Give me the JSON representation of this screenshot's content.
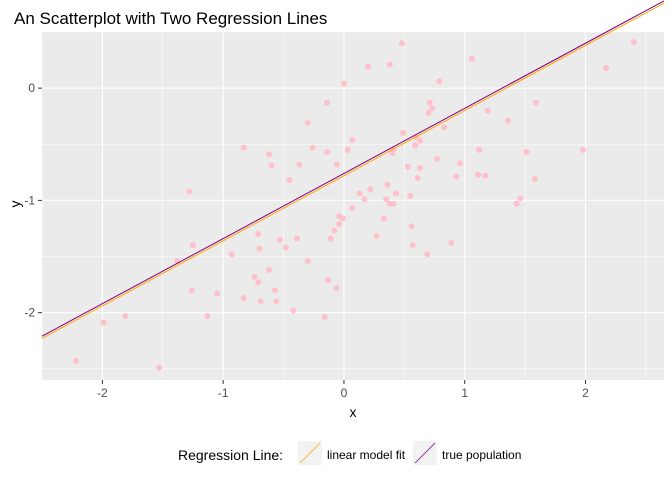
{
  "chart_data": {
    "type": "scatter",
    "title": "An Scatterplot with Two Regression Lines",
    "xlabel": "x",
    "ylabel": "y",
    "xlim": [
      -2.5,
      2.65
    ],
    "ylim": [
      -2.6,
      0.5
    ],
    "xticks": [
      -2,
      -1,
      0,
      1,
      2
    ],
    "yticks": [
      -2,
      -1,
      0
    ],
    "xtick_labels": [
      "-2",
      "-1",
      "0",
      "1",
      "2"
    ],
    "ytick_labels": [
      "-2",
      "-1",
      "0"
    ],
    "grid": true,
    "background": "#EBEBEB",
    "point_color": "#FFC0CB",
    "legend": {
      "title": "Regression Line:",
      "placement": "bottom",
      "entries": [
        {
          "label": "linear model fit",
          "color": "#FFA500"
        },
        {
          "label": "true population",
          "color": "#800080"
        }
      ]
    },
    "lines": [
      {
        "label": "linear model fit",
        "color": "#FFA500",
        "intercept": -0.78,
        "slope": 0.58
      },
      {
        "label": "true population",
        "color": "#800080",
        "intercept": -0.76,
        "slope": 0.58
      }
    ],
    "points": [
      {
        "x": -2.22,
        "y": -2.43
      },
      {
        "x": -1.99,
        "y": -2.09
      },
      {
        "x": -1.81,
        "y": -2.03
      },
      {
        "x": -1.53,
        "y": -2.49
      },
      {
        "x": -1.38,
        "y": -1.54
      },
      {
        "x": -1.28,
        "y": -0.92
      },
      {
        "x": -1.25,
        "y": -1.4
      },
      {
        "x": -1.26,
        "y": -1.8
      },
      {
        "x": -1.13,
        "y": -2.03
      },
      {
        "x": -1.05,
        "y": -1.83
      },
      {
        "x": -0.93,
        "y": -1.48
      },
      {
        "x": -0.83,
        "y": -0.53
      },
      {
        "x": -0.83,
        "y": -1.87
      },
      {
        "x": -0.74,
        "y": -1.68
      },
      {
        "x": -0.71,
        "y": -1.3
      },
      {
        "x": -0.71,
        "y": -1.73
      },
      {
        "x": -0.7,
        "y": -1.43
      },
      {
        "x": -0.69,
        "y": -1.9
      },
      {
        "x": -0.62,
        "y": -1.62
      },
      {
        "x": -0.62,
        "y": -0.59
      },
      {
        "x": -0.6,
        "y": -0.69
      },
      {
        "x": -0.57,
        "y": -1.8
      },
      {
        "x": -0.56,
        "y": -1.9
      },
      {
        "x": -0.53,
        "y": -1.35
      },
      {
        "x": -0.48,
        "y": -1.42
      },
      {
        "x": -0.45,
        "y": -0.82
      },
      {
        "x": -0.42,
        "y": -1.98
      },
      {
        "x": -0.39,
        "y": -1.34
      },
      {
        "x": -0.37,
        "y": -0.68
      },
      {
        "x": -0.3,
        "y": -0.31
      },
      {
        "x": -0.3,
        "y": -1.54
      },
      {
        "x": -0.26,
        "y": -0.53
      },
      {
        "x": -0.16,
        "y": -2.04
      },
      {
        "x": -0.14,
        "y": -0.13
      },
      {
        "x": -0.14,
        "y": -0.57
      },
      {
        "x": -0.13,
        "y": -1.71
      },
      {
        "x": -0.11,
        "y": -1.34
      },
      {
        "x": -0.08,
        "y": -1.27
      },
      {
        "x": -0.06,
        "y": -1.78
      },
      {
        "x": -0.06,
        "y": -0.68
      },
      {
        "x": -0.04,
        "y": -1.21
      },
      {
        "x": -0.04,
        "y": -1.14
      },
      {
        "x": -0.01,
        "y": -1.16
      },
      {
        "x": 0.0,
        "y": 0.04
      },
      {
        "x": 0.03,
        "y": -0.55
      },
      {
        "x": 0.07,
        "y": -0.46
      },
      {
        "x": 0.07,
        "y": -1.07
      },
      {
        "x": 0.13,
        "y": -0.94
      },
      {
        "x": 0.17,
        "y": -0.99
      },
      {
        "x": 0.2,
        "y": 0.19
      },
      {
        "x": 0.22,
        "y": -0.9
      },
      {
        "x": 0.27,
        "y": -1.32
      },
      {
        "x": 0.33,
        "y": -1.16
      },
      {
        "x": 0.35,
        "y": -0.99
      },
      {
        "x": 0.36,
        "y": -0.86
      },
      {
        "x": 0.38,
        "y": -1.03
      },
      {
        "x": 0.38,
        "y": 0.21
      },
      {
        "x": 0.4,
        "y": -0.58
      },
      {
        "x": 0.41,
        "y": -0.55
      },
      {
        "x": 0.41,
        "y": -1.03
      },
      {
        "x": 0.43,
        "y": -0.94
      },
      {
        "x": 0.48,
        "y": 0.4
      },
      {
        "x": 0.49,
        "y": -0.4
      },
      {
        "x": 0.53,
        "y": -0.7
      },
      {
        "x": 0.55,
        "y": -0.96
      },
      {
        "x": 0.56,
        "y": -1.23
      },
      {
        "x": 0.57,
        "y": -1.4
      },
      {
        "x": 0.59,
        "y": -0.51
      },
      {
        "x": 0.6,
        "y": -0.44
      },
      {
        "x": 0.61,
        "y": -0.8
      },
      {
        "x": 0.63,
        "y": -0.47
      },
      {
        "x": 0.63,
        "y": -0.71
      },
      {
        "x": 0.69,
        "y": -1.48
      },
      {
        "x": 0.7,
        "y": -0.22
      },
      {
        "x": 0.71,
        "y": -0.13
      },
      {
        "x": 0.73,
        "y": -0.18
      },
      {
        "x": 0.77,
        "y": -0.63
      },
      {
        "x": 0.79,
        "y": 0.06
      },
      {
        "x": 0.83,
        "y": -0.35
      },
      {
        "x": 0.89,
        "y": -1.38
      },
      {
        "x": 0.93,
        "y": -0.79
      },
      {
        "x": 0.96,
        "y": -0.67
      },
      {
        "x": 1.06,
        "y": 0.26
      },
      {
        "x": 1.11,
        "y": -0.77
      },
      {
        "x": 1.12,
        "y": -0.55
      },
      {
        "x": 1.17,
        "y": -0.78
      },
      {
        "x": 1.19,
        "y": -0.2
      },
      {
        "x": 1.36,
        "y": -0.29
      },
      {
        "x": 1.43,
        "y": -1.03
      },
      {
        "x": 1.46,
        "y": -0.98
      },
      {
        "x": 1.51,
        "y": -0.57
      },
      {
        "x": 1.58,
        "y": -0.81
      },
      {
        "x": 1.59,
        "y": -0.13
      },
      {
        "x": 1.98,
        "y": -0.55
      },
      {
        "x": 2.17,
        "y": 0.18
      },
      {
        "x": 2.4,
        "y": 0.41
      }
    ]
  }
}
